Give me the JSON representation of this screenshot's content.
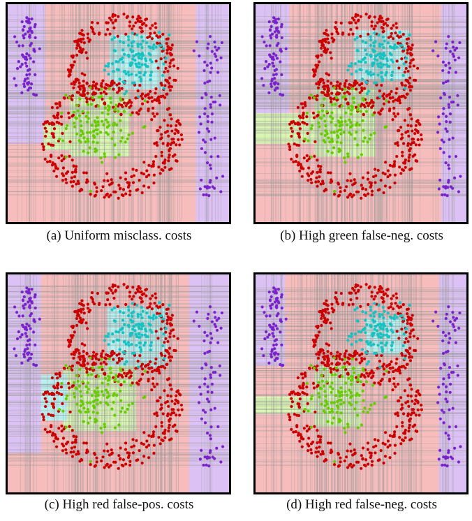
{
  "chart_data": [
    {
      "type": "scatter",
      "caption": "(a) Uniform misclass. costs",
      "title": "",
      "xlabel": "",
      "ylabel": "",
      "xlim": [
        0,
        1
      ],
      "ylim": [
        0,
        1
      ],
      "legend": "none",
      "classes": [
        {
          "color": "#cc0000",
          "region_color": "#f7bcbc",
          "count": 560
        },
        {
          "color": "#16c2c2",
          "region_color": "#b8f2f2",
          "count": 120
        },
        {
          "color": "#66cc00",
          "region_color": "#d9f5b2",
          "count": 120
        },
        {
          "color": "#7a22cc",
          "region_color": "#dcc2f4",
          "count": 150
        }
      ],
      "regions": [
        {
          "class": 0,
          "x": [
            0.0,
            1.0
          ],
          "y": [
            0.0,
            1.0
          ]
        },
        {
          "class": 3,
          "x": [
            0.0,
            0.17
          ],
          "y": [
            0.36,
            1.0
          ]
        },
        {
          "class": 3,
          "x": [
            0.85,
            1.0
          ],
          "y": [
            0.0,
            1.0
          ]
        },
        {
          "class": 1,
          "x": [
            0.46,
            0.71
          ],
          "y": [
            0.61,
            0.86
          ]
        },
        {
          "class": 2,
          "x": [
            0.28,
            0.55
          ],
          "y": [
            0.3,
            0.6
          ]
        },
        {
          "class": 2,
          "x": [
            0.16,
            0.28
          ],
          "y": [
            0.33,
            0.45
          ]
        }
      ]
    },
    {
      "type": "scatter",
      "caption": "(b) High green false-neg. costs",
      "title": "",
      "xlabel": "",
      "ylabel": "",
      "xlim": [
        0,
        1
      ],
      "ylim": [
        0,
        1
      ],
      "legend": "none",
      "classes": [
        {
          "color": "#cc0000",
          "region_color": "#f7bcbc",
          "count": 560
        },
        {
          "color": "#16c2c2",
          "region_color": "#b8f2f2",
          "count": 120
        },
        {
          "color": "#66cc00",
          "region_color": "#d9f5b2",
          "count": 120
        },
        {
          "color": "#7a22cc",
          "region_color": "#dcc2f4",
          "count": 150
        }
      ],
      "regions": [
        {
          "class": 0,
          "x": [
            0.0,
            1.0
          ],
          "y": [
            0.0,
            1.0
          ]
        },
        {
          "class": 3,
          "x": [
            0.0,
            0.16
          ],
          "y": [
            0.42,
            1.0
          ]
        },
        {
          "class": 3,
          "x": [
            0.88,
            1.0
          ],
          "y": [
            0.0,
            1.0
          ]
        },
        {
          "class": 1,
          "x": [
            0.47,
            0.73
          ],
          "y": [
            0.65,
            0.88
          ]
        },
        {
          "class": 2,
          "x": [
            0.28,
            0.57
          ],
          "y": [
            0.3,
            0.62
          ]
        },
        {
          "class": 2,
          "x": [
            0.0,
            0.28
          ],
          "y": [
            0.36,
            0.5
          ]
        }
      ]
    },
    {
      "type": "scatter",
      "caption": "(c) High red false-pos. costs",
      "title": "",
      "xlabel": "",
      "ylabel": "",
      "xlim": [
        0,
        1
      ],
      "ylim": [
        0,
        1
      ],
      "legend": "none",
      "classes": [
        {
          "color": "#cc0000",
          "region_color": "#f7bcbc",
          "count": 560
        },
        {
          "color": "#16c2c2",
          "region_color": "#b8f2f2",
          "count": 120
        },
        {
          "color": "#66cc00",
          "region_color": "#d9f5b2",
          "count": 120
        },
        {
          "color": "#7a22cc",
          "region_color": "#dcc2f4",
          "count": 150
        }
      ],
      "regions": [
        {
          "class": 0,
          "x": [
            0.0,
            1.0
          ],
          "y": [
            0.0,
            1.0
          ]
        },
        {
          "class": 3,
          "x": [
            0.0,
            0.15
          ],
          "y": [
            0.18,
            1.0
          ]
        },
        {
          "class": 3,
          "x": [
            0.82,
            1.0
          ],
          "y": [
            0.0,
            1.0
          ]
        },
        {
          "class": 1,
          "x": [
            0.45,
            0.72
          ],
          "y": [
            0.57,
            0.85
          ]
        },
        {
          "class": 2,
          "x": [
            0.25,
            0.58
          ],
          "y": [
            0.28,
            0.58
          ]
        },
        {
          "class": 1,
          "x": [
            0.15,
            0.27
          ],
          "y": [
            0.33,
            0.54
          ]
        }
      ]
    },
    {
      "type": "scatter",
      "caption": "(d) High red false-neg. costs",
      "title": "",
      "xlabel": "",
      "ylabel": "",
      "xlim": [
        0,
        1
      ],
      "ylim": [
        0,
        1
      ],
      "legend": "none",
      "classes": [
        {
          "color": "#cc0000",
          "region_color": "#f7bcbc",
          "count": 560
        },
        {
          "color": "#16c2c2",
          "region_color": "#b8f2f2",
          "count": 120
        },
        {
          "color": "#66cc00",
          "region_color": "#d9f5b2",
          "count": 120
        },
        {
          "color": "#7a22cc",
          "region_color": "#dcc2f4",
          "count": 150
        }
      ],
      "regions": [
        {
          "class": 0,
          "x": [
            0.0,
            1.0
          ],
          "y": [
            0.0,
            1.0
          ]
        },
        {
          "class": 3,
          "x": [
            0.0,
            0.14
          ],
          "y": [
            0.58,
            1.0
          ]
        },
        {
          "class": 3,
          "x": [
            0.87,
            1.0
          ],
          "y": [
            0.0,
            1.0
          ]
        },
        {
          "class": 1,
          "x": [
            0.52,
            0.72
          ],
          "y": [
            0.63,
            0.8
          ]
        },
        {
          "class": 2,
          "x": [
            0.28,
            0.5
          ],
          "y": [
            0.3,
            0.58
          ]
        },
        {
          "class": 2,
          "x": [
            0.0,
            0.28
          ],
          "y": [
            0.36,
            0.44
          ]
        }
      ]
    }
  ]
}
